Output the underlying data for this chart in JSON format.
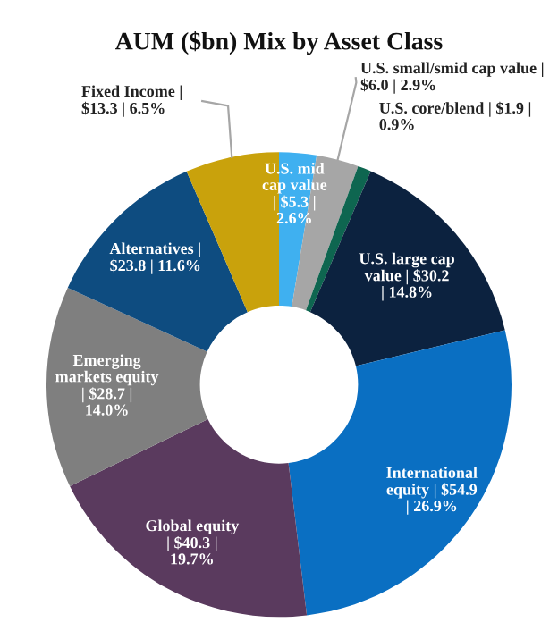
{
  "chart_data": {
    "type": "donut",
    "title": "AUM ($bn) Mix by Asset Class",
    "categories": [
      "U.S. mid cap value",
      "U.S. small/smid cap value",
      "U.S. core/blend",
      "U.S. large cap value",
      "International equity",
      "Global equity",
      "Emerging markets equity",
      "Alternatives",
      "Fixed Income"
    ],
    "values": [
      5.3,
      6.0,
      1.9,
      30.2,
      54.9,
      40.3,
      28.7,
      23.8,
      13.3
    ],
    "value_labels": [
      "| $5.3 | 2.6%",
      "| $6.0 | 2.9%",
      "| $1.9 | 0.9%",
      "| $30.2 | 14.8%",
      "| $54.9 | 26.9%",
      "| $40.3 | 19.7%",
      "| $28.7 | 14.0%",
      "| $23.8 | 11.6%",
      "| $13.3 | 6.5%"
    ],
    "colors": [
      "#3fb0f0",
      "#a6a6a6",
      "#0e6650",
      "#0c223f",
      "#0a6fc2",
      "#5a3a5e",
      "#7f7f7f",
      "#0e4c80",
      "#c9a20c"
    ]
  }
}
